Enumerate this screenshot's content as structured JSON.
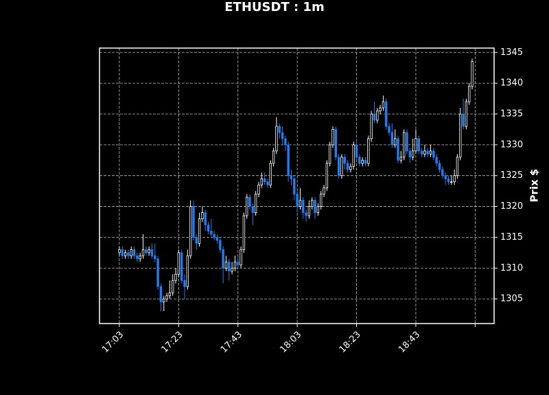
{
  "chart_data": {
    "type": "candlestick",
    "title": "ETHUSDT : 1m",
    "y_label": "Prix $",
    "up_color": "#ffffff",
    "down_color": "#1f7ef5",
    "background": "#000000",
    "grid": true,
    "y_axis_side": "right",
    "categories": [
      "17:03",
      null,
      null,
      null,
      null,
      null,
      null,
      null,
      null,
      null,
      null,
      null,
      null,
      null,
      null,
      null,
      null,
      null,
      null,
      null,
      "17:23",
      null,
      null,
      null,
      null,
      null,
      null,
      null,
      null,
      null,
      null,
      null,
      null,
      null,
      null,
      null,
      null,
      null,
      null,
      null,
      "17:43",
      null,
      null,
      null,
      null,
      null,
      null,
      null,
      null,
      null,
      null,
      null,
      null,
      null,
      null,
      null,
      null,
      null,
      null,
      null,
      "18:03",
      null,
      null,
      null,
      null,
      null,
      null,
      null,
      null,
      null,
      null,
      null,
      null,
      null,
      null,
      null,
      null,
      null,
      null,
      null,
      "18:23",
      null,
      null,
      null,
      null,
      null,
      null,
      null,
      null,
      null,
      null,
      null,
      null,
      null,
      null,
      null,
      null,
      null,
      null,
      null,
      "18:43",
      null,
      null,
      null,
      null,
      null,
      null,
      null,
      null,
      null,
      null,
      null,
      null,
      null,
      null,
      null,
      null,
      null,
      null,
      null
    ],
    "xlim": [
      -6.7,
      126.4
    ],
    "xticks": [
      0,
      20,
      40,
      60,
      80,
      100,
      120
    ],
    "ylim": [
      1301,
      1345.7
    ],
    "yticks": [
      1305,
      1310,
      1315,
      1320,
      1325,
      1330,
      1335,
      1340,
      1345
    ],
    "open": [
      1312.5,
      1313,
      1312,
      1312.5,
      1312,
      1313,
      1312,
      1311.5,
      1312,
      1313,
      1312.5,
      1313,
      1312,
      1311.5,
      1307,
      1304.5,
      1305,
      1305.5,
      1306,
      1308,
      1309,
      1312.5,
      1308,
      1307,
      1312,
      1320,
      1315,
      1314,
      1318,
      1319,
      1317,
      1316,
      1315.5,
      1315,
      1314.5,
      1313,
      1310,
      1311,
      1309.5,
      1310,
      1311,
      1310.5,
      1313,
      1318.5,
      1321.5,
      1320,
      1319,
      1322,
      1323.5,
      1324.5,
      1324,
      1323.5,
      1327,
      1329,
      1333,
      1332,
      1331,
      1330,
      1325,
      1324.5,
      1322,
      1320,
      1321,
      1319,
      1318.5,
      1320,
      1321,
      1319,
      1320,
      1322,
      1323,
      1327,
      1330,
      1332.5,
      1328,
      1325,
      1328,
      1327,
      1326,
      1326.5,
      1330,
      1328,
      1327,
      1327.5,
      1327,
      1331,
      1335,
      1334,
      1335.5,
      1336,
      1337,
      1333,
      1332,
      1330,
      1331,
      1327.5,
      1328,
      1332,
      1329,
      1328,
      1329,
      1331,
      1329,
      1328.5,
      1329,
      1328.5,
      1329,
      1328,
      1327,
      1326,
      1325,
      1324.5,
      1324,
      1324,
      1325,
      1328,
      1335,
      1333,
      1337,
      1339.5
    ],
    "high": [
      1313.5,
      1313.5,
      1313,
      1313,
      1313.5,
      1313.5,
      1312.5,
      1312.5,
      1315.5,
      1313.5,
      1313.5,
      1314,
      1314,
      1312,
      1307.5,
      1305.5,
      1306,
      1308,
      1309,
      1310,
      1313,
      1313,
      1309,
      1313,
      1321,
      1321,
      1315.5,
      1319,
      1320,
      1319.5,
      1317.5,
      1318,
      1316,
      1315.5,
      1315,
      1313.5,
      1312,
      1311.5,
      1311,
      1312,
      1312,
      1313.5,
      1319,
      1322,
      1322,
      1320.5,
      1322.5,
      1324,
      1325.5,
      1325.5,
      1324.5,
      1327.5,
      1329.5,
      1334.5,
      1333.5,
      1333,
      1331.5,
      1330.5,
      1326,
      1325,
      1322.5,
      1323,
      1321.5,
      1319.5,
      1321,
      1321.5,
      1321.5,
      1320.5,
      1322.5,
      1323.5,
      1327.5,
      1330.5,
      1333,
      1333,
      1328.5,
      1328.5,
      1328.5,
      1327.5,
      1327,
      1330.5,
      1331,
      1328.5,
      1328,
      1328,
      1331.5,
      1335.5,
      1337,
      1336,
      1336.5,
      1338,
      1337.5,
      1333.5,
      1333.5,
      1332.5,
      1331.5,
      1329,
      1332.5,
      1332.5,
      1329.5,
      1331,
      1332.5,
      1331.5,
      1329.5,
      1330,
      1329.5,
      1330,
      1329.5,
      1328.5,
      1327.5,
      1326.5,
      1325.5,
      1325,
      1325,
      1326,
      1328.5,
      1336,
      1337.5,
      1337.5,
      1340,
      1344
    ],
    "low": [
      1312,
      1311.5,
      1311.5,
      1311.5,
      1311.5,
      1311.5,
      1311,
      1311,
      1311.5,
      1312,
      1312,
      1311.5,
      1311,
      1306.5,
      1303,
      1303,
      1304.5,
      1305,
      1305.5,
      1307.5,
      1308.5,
      1307.5,
      1305,
      1306.5,
      1311.5,
      1314.5,
      1313,
      1313.5,
      1317.5,
      1316,
      1315.5,
      1315,
      1314.5,
      1314,
      1312.5,
      1307.5,
      1309.5,
      1308,
      1309,
      1309.5,
      1310,
      1310,
      1312.5,
      1318,
      1319.5,
      1317,
      1318.5,
      1321.5,
      1323,
      1323.5,
      1323,
      1323,
      1326.5,
      1328.5,
      1331,
      1330,
      1329,
      1324,
      1323.5,
      1321,
      1319,
      1319.5,
      1318,
      1317.5,
      1318,
      1319.5,
      1318,
      1318.5,
      1319.5,
      1321.5,
      1322.5,
      1326.5,
      1329.5,
      1327.5,
      1324.5,
      1324.5,
      1326,
      1325.5,
      1325.5,
      1326,
      1327.5,
      1326.5,
      1326.5,
      1326.5,
      1326.5,
      1330.5,
      1333.5,
      1333.5,
      1335,
      1335.5,
      1332.5,
      1331.5,
      1329.5,
      1329.5,
      1327,
      1327,
      1327.5,
      1328.5,
      1327,
      1327.5,
      1328.5,
      1328.5,
      1328,
      1328,
      1328,
      1328,
      1327.5,
      1326.5,
      1325.5,
      1324.5,
      1323.5,
      1323.5,
      1323.5,
      1323.5,
      1324.5,
      1327.5,
      1332.5,
      1332.5,
      1336.5,
      1339
    ],
    "close": [
      1313,
      1312,
      1312.5,
      1312,
      1313,
      1312,
      1311.5,
      1312,
      1313,
      1312.5,
      1313,
      1312,
      1311.5,
      1307,
      1304.5,
      1305,
      1305.5,
      1306,
      1308,
      1309,
      1312.5,
      1308,
      1307,
      1312,
      1320,
      1315,
      1314,
      1318,
      1319,
      1317,
      1316,
      1315.5,
      1315,
      1314.5,
      1313,
      1310,
      1311,
      1309.5,
      1310,
      1311,
      1310.5,
      1313,
      1318.5,
      1321.5,
      1320,
      1319,
      1322,
      1323.5,
      1324.5,
      1324,
      1323.5,
      1327,
      1329,
      1333,
      1332,
      1331,
      1330,
      1325,
      1324.5,
      1322,
      1320,
      1321,
      1319,
      1318.5,
      1320,
      1321,
      1319,
      1320,
      1322,
      1323,
      1327,
      1330,
      1332.5,
      1328,
      1325,
      1328,
      1327,
      1326,
      1326.5,
      1330,
      1328,
      1327,
      1327.5,
      1327,
      1331,
      1335,
      1334,
      1335.5,
      1336,
      1337,
      1333,
      1332,
      1330,
      1331,
      1327.5,
      1328,
      1332,
      1329,
      1328,
      1329,
      1331,
      1329,
      1328.5,
      1329,
      1328.5,
      1329,
      1328,
      1327,
      1326,
      1325,
      1324.5,
      1324,
      1324,
      1325,
      1328,
      1335,
      1333,
      1337,
      1339.5,
      1343.5
    ]
  }
}
